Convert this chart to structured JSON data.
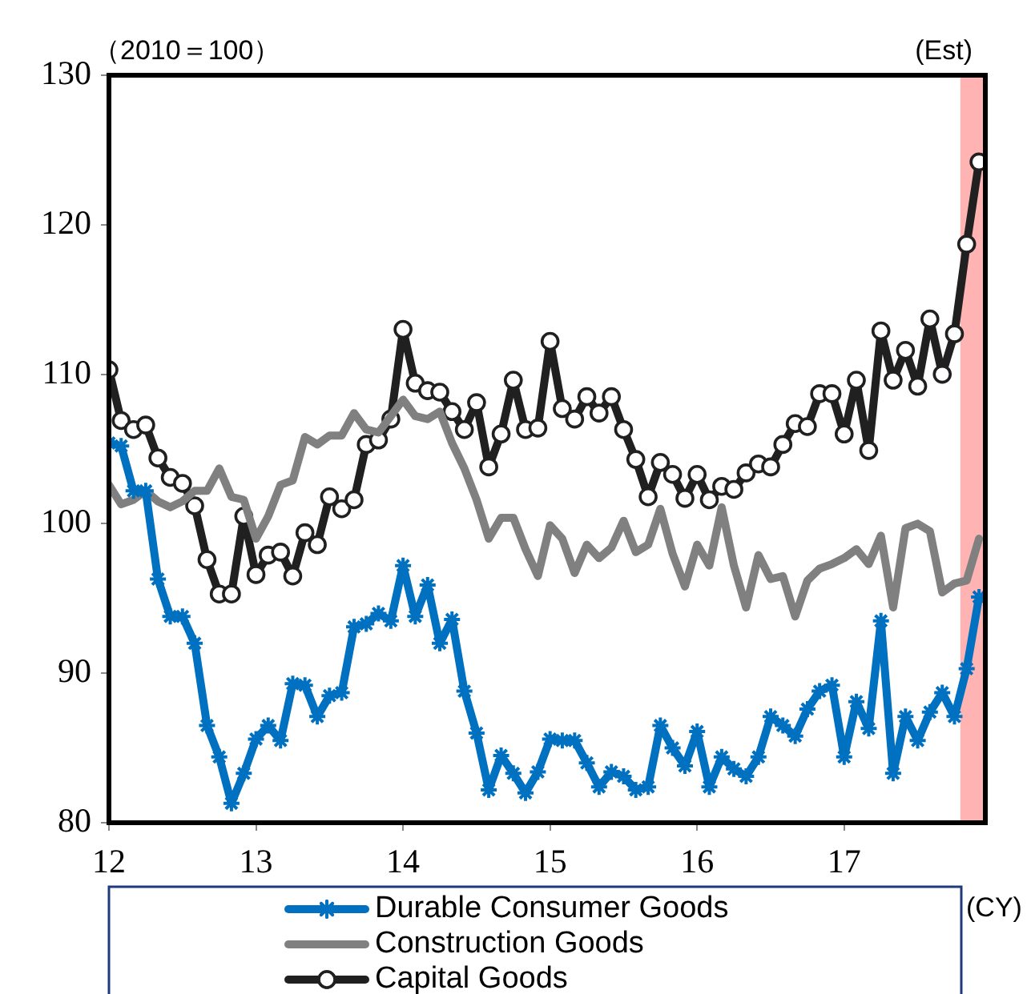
{
  "chart_data": {
    "type": "line",
    "ylabel": "（2010＝100）",
    "xlabel": "(CY)",
    "legend": "bottom",
    "x": [
      12,
      12.083,
      12.167,
      12.25,
      12.333,
      12.417,
      12.5,
      12.583,
      12.667,
      12.75,
      12.833,
      12.917,
      13,
      13.083,
      13.167,
      13.25,
      13.333,
      13.417,
      13.5,
      13.583,
      13.667,
      13.75,
      13.833,
      13.917,
      14,
      14.083,
      14.167,
      14.25,
      14.333,
      14.417,
      14.5,
      14.583,
      14.667,
      14.75,
      14.833,
      14.917,
      15,
      15.083,
      15.167,
      15.25,
      15.333,
      15.417,
      15.5,
      15.583,
      15.667,
      15.75,
      15.833,
      15.917,
      16,
      16.083,
      16.167,
      16.25,
      16.333,
      16.417,
      16.5,
      16.583,
      16.667,
      16.75,
      16.833,
      16.917,
      17,
      17.083,
      17.167,
      17.25,
      17.333,
      17.417,
      17.5,
      17.583,
      17.667,
      17.75,
      17.833,
      17.917
    ],
    "xlim": [
      12,
      17.96
    ],
    "xticks": [
      12,
      13,
      14,
      15,
      16,
      17
    ],
    "ylim": [
      80,
      130
    ],
    "yticks": [
      80,
      90,
      100,
      110,
      120,
      130
    ],
    "series": [
      {
        "name": "Durable Consumer Goods",
        "color": "#0070c0",
        "marker": "cross",
        "values": [
          105.4,
          105.2,
          102.2,
          102.2,
          96.3,
          93.8,
          93.8,
          92.0,
          86.5,
          84.4,
          81.3,
          83.3,
          85.6,
          86.5,
          85.5,
          89.3,
          89.2,
          87.1,
          88.5,
          88.7,
          93.1,
          93.3,
          94.0,
          93.5,
          97.2,
          93.8,
          95.9,
          92.0,
          93.6,
          88.8,
          86.0,
          82.2,
          84.5,
          83.3,
          82.0,
          83.4,
          85.6,
          85.5,
          85.5,
          84.0,
          82.4,
          83.4,
          83.1,
          82.2,
          82.4,
          86.5,
          85.0,
          83.8,
          86.1,
          82.4,
          84.4,
          83.6,
          83.1,
          84.4,
          87.1,
          86.5,
          85.8,
          87.6,
          88.8,
          89.2,
          84.4,
          88.1,
          86.3,
          93.5,
          83.3,
          87.1,
          85.5,
          87.4,
          88.7,
          87.1,
          90.3,
          95.1
        ]
      },
      {
        "name": "Construction Goods",
        "color": "#808080",
        "marker": "none",
        "values": [
          102.6,
          101.3,
          101.6,
          102.2,
          101.5,
          101.1,
          101.5,
          102.2,
          102.2,
          103.7,
          101.8,
          101.6,
          99.0,
          100.5,
          102.6,
          102.9,
          105.8,
          105.3,
          105.9,
          105.9,
          107.4,
          106.3,
          106.1,
          107.2,
          108.3,
          107.2,
          107.0,
          107.5,
          105.4,
          103.7,
          101.6,
          99.0,
          100.4,
          100.4,
          98.3,
          96.5,
          99.9,
          99.0,
          96.7,
          98.6,
          97.7,
          98.4,
          100.2,
          98.1,
          98.6,
          101.0,
          98.0,
          95.8,
          98.6,
          97.2,
          101.1,
          97.2,
          94.4,
          97.9,
          96.3,
          96.5,
          93.8,
          96.2,
          97.0,
          97.3,
          97.7,
          98.3,
          97.3,
          99.2,
          94.4,
          99.7,
          100.0,
          99.5,
          95.4,
          96.0,
          96.2,
          99.0
        ]
      },
      {
        "name": "Capital Goods",
        "color": "#202020",
        "marker": "circle",
        "values": [
          110.3,
          106.9,
          106.3,
          106.6,
          104.4,
          103.1,
          102.7,
          101.2,
          97.6,
          95.3,
          95.3,
          100.5,
          96.6,
          97.9,
          98.1,
          96.5,
          99.4,
          98.6,
          101.8,
          101.0,
          101.6,
          105.3,
          105.6,
          107.0,
          113.0,
          109.4,
          108.9,
          108.8,
          107.5,
          106.3,
          108.1,
          103.8,
          106.0,
          109.6,
          106.3,
          106.4,
          112.2,
          107.7,
          107.0,
          108.5,
          107.4,
          108.5,
          106.3,
          104.3,
          101.8,
          104.1,
          103.3,
          101.7,
          103.3,
          101.6,
          102.5,
          102.3,
          103.4,
          104.0,
          103.8,
          105.3,
          106.7,
          106.5,
          108.7,
          108.7,
          106.0,
          109.6,
          104.9,
          112.9,
          109.6,
          111.6,
          109.2,
          113.7,
          110.0,
          112.7,
          118.7,
          124.2
        ]
      }
    ],
    "bands": [
      {
        "axis": "x",
        "from": 17.79,
        "to": 17.96,
        "label": "(Est)",
        "color": "#ffb3b3"
      }
    ]
  }
}
